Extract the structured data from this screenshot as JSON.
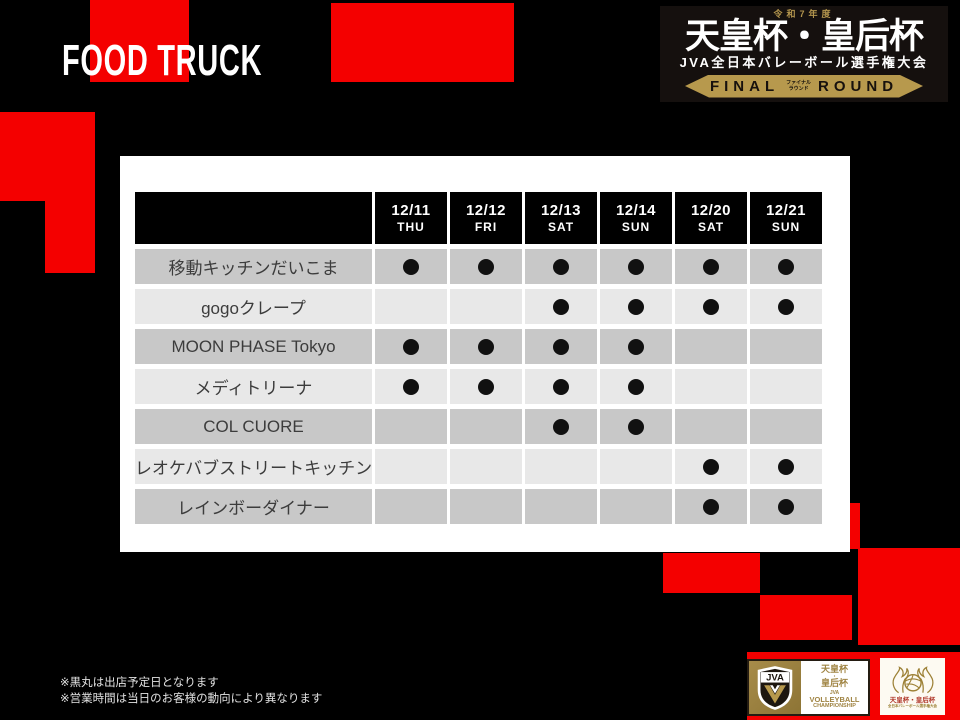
{
  "slide": {
    "title": "FOOD TRUCK",
    "notes": [
      "※黒丸は出店予定日となります",
      "※営業時間は当日のお客様の動向により異なります"
    ]
  },
  "event_logo": {
    "era": "令和7年度",
    "title": "天皇杯・皇后杯",
    "subtitle": "JVA全日本バレーボール選手権大会",
    "final_label": "FINAL",
    "round_label": "ROUND",
    "final_kana": "ファイナル",
    "round_kana": "ラウンド"
  },
  "schedule": {
    "columns": [
      {
        "date": "12/11",
        "day": "THU"
      },
      {
        "date": "12/12",
        "day": "FRI"
      },
      {
        "date": "12/13",
        "day": "SAT"
      },
      {
        "date": "12/14",
        "day": "SUN"
      },
      {
        "date": "12/20",
        "day": "SAT"
      },
      {
        "date": "12/21",
        "day": "SUN"
      }
    ],
    "rows": [
      {
        "name": "移動キッチンだいこま",
        "marks": [
          1,
          1,
          1,
          1,
          1,
          1
        ]
      },
      {
        "name": "gogoクレープ",
        "marks": [
          0,
          0,
          1,
          1,
          1,
          1
        ]
      },
      {
        "name": "MOON PHASE Tokyo",
        "marks": [
          1,
          1,
          1,
          1,
          0,
          0
        ]
      },
      {
        "name": "メディトリーナ",
        "marks": [
          1,
          1,
          1,
          1,
          0,
          0
        ]
      },
      {
        "name": "COL CUORE",
        "marks": [
          0,
          0,
          1,
          1,
          0,
          0
        ]
      },
      {
        "name": "レオケバブストリートキッチン",
        "marks": [
          0,
          0,
          0,
          0,
          1,
          1
        ]
      },
      {
        "name": "レインボーダイナー",
        "marks": [
          0,
          0,
          0,
          0,
          1,
          1
        ]
      }
    ],
    "mark_glyph": "●"
  },
  "footer_logos": {
    "jva_badge": {
      "shield_label": "JVA",
      "line1": "天皇杯",
      "line2": "・",
      "line3": "皇后杯",
      "line4": "JVA",
      "line5": "VOLLEYBALL",
      "line6": "CHAMPIONSHIP"
    },
    "emblem_badge": {
      "line1": "天皇杯・皇后杯",
      "line2": "全日本バレーボール選手権大会"
    }
  },
  "colors": {
    "accent_red": "#f40000",
    "gold": "#b7994d",
    "header_black": "#000000",
    "row_dark": "#c8c8c8",
    "row_light": "#e8e8e8"
  }
}
